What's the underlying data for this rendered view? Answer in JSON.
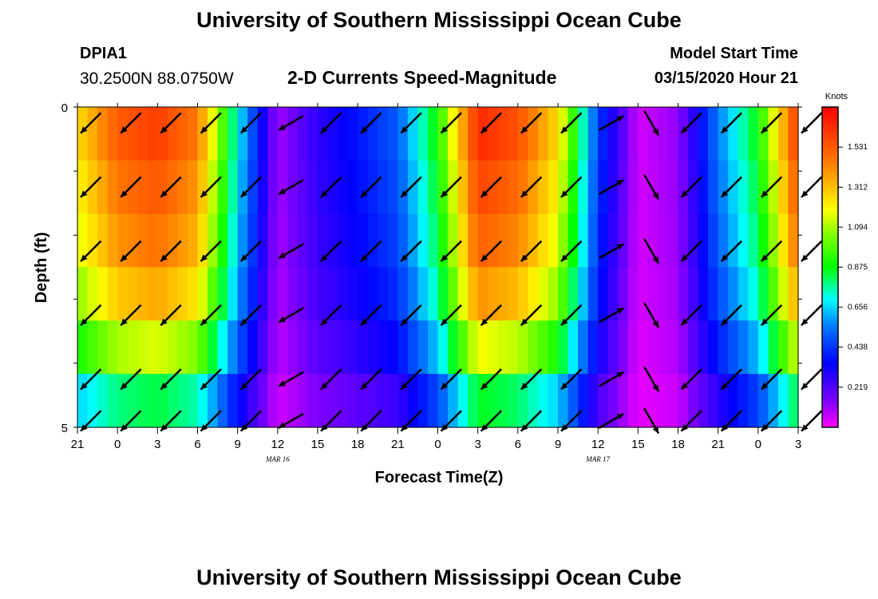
{
  "header": {
    "title_top": "University of Southern Mississippi Ocean Cube",
    "title_bottom": "University of Southern Mississippi Ocean Cube",
    "station_id": "DPIA1",
    "station_coords": "30.2500N 88.0750W",
    "chart_title": "2-D Currents Speed-Magnitude",
    "model_start_label": "Model Start Time",
    "model_start_value": "03/15/2020 Hour 21"
  },
  "chart_data": {
    "type": "heatmap",
    "title": "2-D Currents Speed-Magnitude",
    "xlabel": "Forecast Time(Z)",
    "ylabel": "Depth (ft)",
    "x_ticks": [
      "21",
      "0",
      "3",
      "6",
      "9",
      "12",
      "15",
      "18",
      "21",
      "0",
      "3",
      "6",
      "9",
      "12",
      "15",
      "18",
      "21",
      "0",
      "3"
    ],
    "x_date_labels": [
      {
        "label": "MAR 16",
        "tick_index": 5
      },
      {
        "label": "MAR 17",
        "tick_index": 13
      }
    ],
    "y_ticks": [
      "0",
      "5"
    ],
    "ylim": [
      0,
      5
    ],
    "colorbar": {
      "unit": "Knots",
      "ticks": [
        "1.531",
        "1.312",
        "1.094",
        "0.875",
        "0.656",
        "0.438",
        "0.219"
      ],
      "tick_values": [
        1.531,
        1.312,
        1.094,
        0.875,
        0.656,
        0.438,
        0.219
      ],
      "range": [
        0,
        1.75
      ]
    },
    "hours": [
      0,
      3,
      6,
      9,
      12,
      15,
      18,
      21,
      24,
      27,
      30,
      33,
      36,
      39,
      42,
      45,
      48,
      51,
      54
    ],
    "layer_factors": [
      1.0,
      0.96,
      0.92,
      0.85,
      0.72,
      0.52
    ],
    "surface_speed": [
      1.25,
      1.52,
      1.6,
      1.45,
      0.7,
      0.1,
      0.28,
      0.38,
      0.5,
      0.9,
      1.65,
      1.55,
      1.25,
      0.45,
      0.05,
      0.12,
      0.55,
      0.88,
      1.62
    ],
    "arrow_hours": [
      1,
      4,
      7,
      10,
      13,
      16,
      19,
      22,
      25,
      28,
      31,
      34,
      37,
      40,
      43,
      46,
      49,
      52,
      55
    ],
    "arrow_layers": [
      0.25,
      1.25,
      2.25,
      3.25,
      4.25
    ],
    "arrow_bottom_depth": 4.9,
    "arrow_directions": [
      135,
      135,
      135,
      135,
      135,
      150,
      135,
      135,
      135,
      135,
      135,
      135,
      135,
      330,
      60,
      135,
      135,
      135,
      135
    ]
  }
}
